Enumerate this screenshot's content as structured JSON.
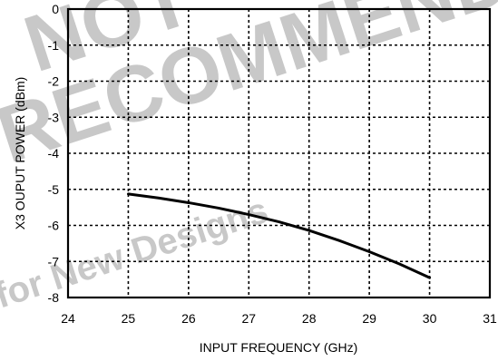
{
  "chart_data": {
    "type": "line",
    "title": "",
    "xlabel": "INPUT FREQUENCY (GHz)",
    "ylabel": "X3 OUPUT POWER (dBm)",
    "xlim": [
      24,
      31
    ],
    "ylim": [
      -8,
      0
    ],
    "x_ticks": [
      24,
      25,
      26,
      27,
      28,
      29,
      30,
      31
    ],
    "y_ticks": [
      0,
      -1,
      -2,
      -3,
      -4,
      -5,
      -6,
      -7,
      -8
    ],
    "grid": true,
    "grid_style": "dotted",
    "legend": "none",
    "series": [
      {
        "x": [
          25.0,
          25.5,
          26.0,
          26.5,
          27.0,
          27.5,
          28.0,
          28.5,
          29.0,
          29.5,
          30.0
        ],
        "y": [
          -5.13,
          -5.24,
          -5.37,
          -5.52,
          -5.7,
          -5.9,
          -6.14,
          -6.42,
          -6.73,
          -7.07,
          -7.45
        ],
        "color": "#000000"
      }
    ]
  },
  "watermark": {
    "text_lines": [
      "NOT",
      "RECOMMENDED",
      "for New Designs"
    ],
    "color": "#c8c8c8"
  }
}
